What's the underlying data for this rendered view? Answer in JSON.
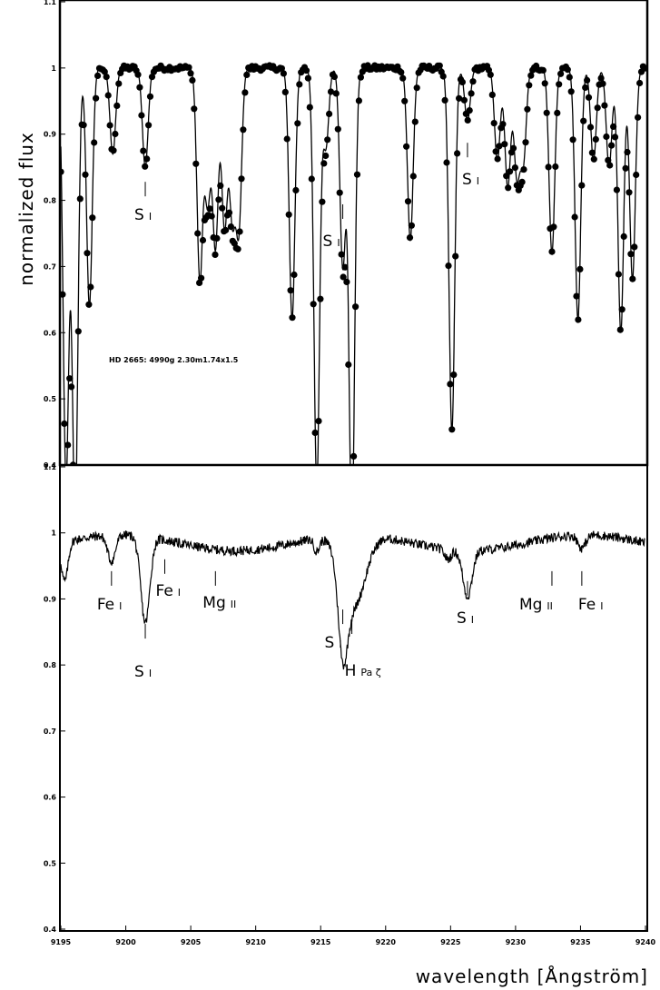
{
  "chart_data": [
    {
      "type": "line",
      "panel": "top",
      "title": "",
      "xlabel": "",
      "ylabel": "normalized flux",
      "xlim": [
        9195,
        9240
      ],
      "ylim": [
        0.4,
        1.1
      ],
      "yticks": [
        "0.4",
        "0.5",
        "0.6",
        "0.7",
        "0.8",
        "0.9",
        "1",
        "1.1"
      ],
      "annotation": "HD 2665: 4990g 2.30m1.74x1.5",
      "lines": [
        {
          "label": "S",
          "ion": "I",
          "x": 9201.5,
          "y": 0.806
        },
        {
          "label": "S",
          "ion": "I",
          "x": 9216.7,
          "y": 0.772
        },
        {
          "label": "S",
          "ion": "I",
          "x": 9226.3,
          "y": 0.865
        }
      ],
      "series": [
        {
          "kind": "model-line"
        },
        {
          "kind": "observed-points"
        }
      ],
      "dips": [
        {
          "x": 9195.4,
          "depth": 0.62
        },
        {
          "x": 9196.1,
          "depth": 0.68
        },
        {
          "x": 9197.2,
          "depth": 0.36
        },
        {
          "x": 9199.0,
          "depth": 0.13
        },
        {
          "x": 9201.5,
          "depth": 0.15
        },
        {
          "x": 9205.7,
          "depth": 0.32
        },
        {
          "x": 9206.3,
          "depth": 0.2
        },
        {
          "x": 9206.9,
          "depth": 0.27
        },
        {
          "x": 9207.6,
          "depth": 0.24
        },
        {
          "x": 9208.2,
          "depth": 0.22
        },
        {
          "x": 9208.7,
          "depth": 0.24
        },
        {
          "x": 9212.8,
          "depth": 0.38
        },
        {
          "x": 9214.7,
          "depth": 0.63
        },
        {
          "x": 9215.4,
          "depth": 0.12
        },
        {
          "x": 9216.7,
          "depth": 0.3
        },
        {
          "x": 9217.4,
          "depth": 0.7
        },
        {
          "x": 9221.9,
          "depth": 0.26
        },
        {
          "x": 9225.1,
          "depth": 0.55
        },
        {
          "x": 9226.3,
          "depth": 0.08
        },
        {
          "x": 9228.6,
          "depth": 0.14
        },
        {
          "x": 9229.4,
          "depth": 0.18
        },
        {
          "x": 9230.1,
          "depth": 0.16
        },
        {
          "x": 9230.6,
          "depth": 0.14
        },
        {
          "x": 9232.8,
          "depth": 0.28
        },
        {
          "x": 9234.8,
          "depth": 0.38
        },
        {
          "x": 9236.0,
          "depth": 0.14
        },
        {
          "x": 9237.2,
          "depth": 0.15
        },
        {
          "x": 9238.1,
          "depth": 0.4
        },
        {
          "x": 9239.0,
          "depth": 0.32
        }
      ]
    },
    {
      "type": "line",
      "panel": "bottom",
      "title": "",
      "xlabel": "wavelength [Ångström]",
      "ylabel": "",
      "xlim": [
        9195,
        9240
      ],
      "ylim": [
        0.4,
        1.1
      ],
      "xticks": [
        "9195",
        "9200",
        "9205",
        "9210",
        "9215",
        "9220",
        "9225",
        "9230",
        "9235",
        "9240"
      ],
      "yticks": [
        "0.4",
        "0.5",
        "0.6",
        "0.7",
        "0.8",
        "0.9",
        "1",
        "1.1"
      ],
      "lines": [
        {
          "label": "Fe",
          "ion": "I",
          "x": 9198.9,
          "y": 0.92
        },
        {
          "label": "Fe",
          "ion": "I",
          "x": 9203.0,
          "y": 0.938
        },
        {
          "label": "Mg",
          "ion": "II",
          "x": 9206.9,
          "y": 0.92
        },
        {
          "label": "S",
          "ion": "I",
          "x": 9201.5,
          "y": 0.84
        },
        {
          "label": "S",
          "ion": "I",
          "x": 9216.7,
          "y": 0.862
        },
        {
          "label": "H",
          "ion": "Pa ζ",
          "x": 9217.4,
          "y": 0.847
        },
        {
          "label": "S",
          "ion": "I",
          "x": 9226.3,
          "y": 0.905
        },
        {
          "label": "Mg",
          "ion": "II",
          "x": 9232.8,
          "y": 0.92
        },
        {
          "label": "Fe",
          "ion": "I",
          "x": 9235.1,
          "y": 0.92
        }
      ],
      "dips": [
        {
          "x": 9195.3,
          "depth": 0.06,
          "w": 0.25
        },
        {
          "x": 9198.9,
          "depth": 0.04,
          "w": 0.3
        },
        {
          "x": 9201.5,
          "depth": 0.13,
          "w": 0.35
        },
        {
          "x": 9214.7,
          "depth": 0.02,
          "w": 0.2
        },
        {
          "x": 9216.7,
          "depth": 0.12,
          "w": 0.35
        },
        {
          "x": 9217.5,
          "depth": 0.11,
          "w": 0.9
        },
        {
          "x": 9224.8,
          "depth": 0.015,
          "w": 0.25
        },
        {
          "x": 9226.3,
          "depth": 0.07,
          "w": 0.35
        },
        {
          "x": 9235.1,
          "depth": 0.02,
          "w": 0.3
        }
      ]
    }
  ]
}
